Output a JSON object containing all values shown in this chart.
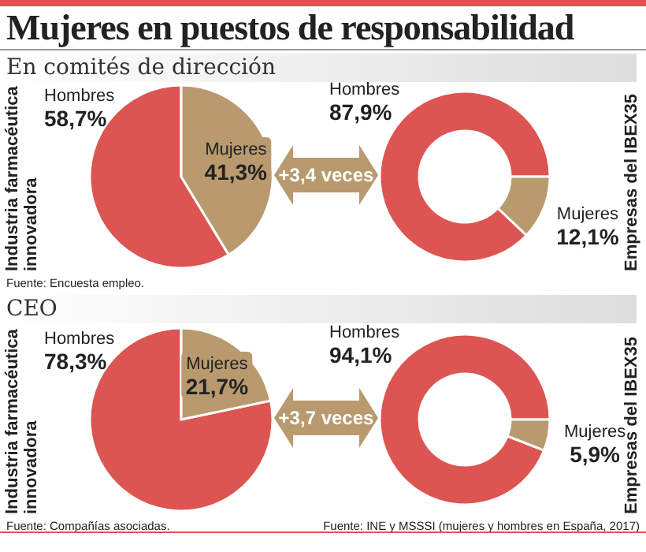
{
  "chart_data": [
    {
      "type": "pie",
      "title": "Mujeres en puestos de responsabilidad",
      "subtitle": "En comités de dirección",
      "ylabel": "Industria farmacéutica innovadora",
      "categories": [
        "Hombres",
        "Mujeres"
      ],
      "values": [
        58.7,
        41.3
      ],
      "colors": [
        "#dc5552",
        "#b99a6e"
      ],
      "value_labels": [
        "58,7%",
        "41,3%"
      ],
      "annotations": [
        "+3,4 veces",
        "Fuente: Encuesta empleo."
      ]
    },
    {
      "type": "donut",
      "ylabel": "Empresas del IBEX35",
      "categories": [
        "Hombres",
        "Mujeres"
      ],
      "values": [
        87.9,
        12.1
      ],
      "colors": [
        "#dc5552",
        "#b99a6e"
      ],
      "value_labels": [
        "87,9%",
        "12,1%"
      ]
    },
    {
      "type": "pie",
      "subtitle": "CEO",
      "ylabel": "Industria farmacéutica innovadora",
      "categories": [
        "Hombres",
        "Mujeres"
      ],
      "values": [
        78.3,
        21.7
      ],
      "colors": [
        "#dc5552",
        "#b99a6e"
      ],
      "value_labels": [
        "78,3%",
        "21,7%"
      ],
      "annotations": [
        "+3,7 veces",
        "Fuente: Compañías asociadas."
      ]
    },
    {
      "type": "donut",
      "ylabel": "Empresas del IBEX35",
      "categories": [
        "Hombres",
        "Mujeres"
      ],
      "values": [
        94.1,
        5.9
      ],
      "colors": [
        "#dc5552",
        "#b99a6e"
      ],
      "value_labels": [
        "94,1%",
        "5,9%"
      ],
      "annotations": [
        "Fuente: INE y MSSSI (mujeres y hombres en España, 2017)"
      ]
    }
  ]
}
